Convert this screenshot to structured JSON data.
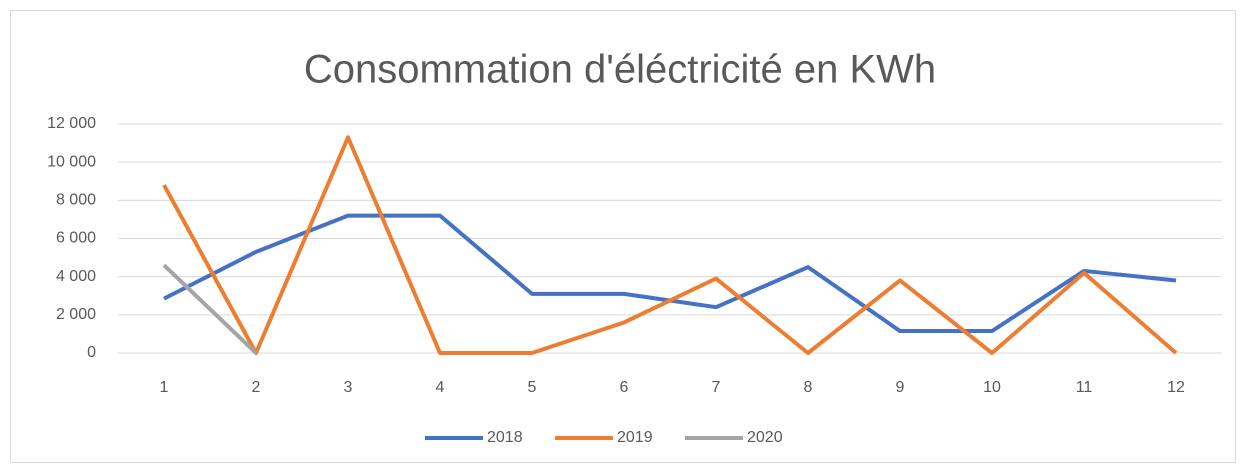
{
  "chart_data": {
    "type": "line",
    "title": "Consommation d'éléctricité en KWh",
    "categories": [
      "1",
      "2",
      "3",
      "4",
      "5",
      "6",
      "7",
      "8",
      "9",
      "10",
      "11",
      "12"
    ],
    "series": [
      {
        "name": "2018",
        "color": "#4472c4",
        "values": [
          2850,
          5300,
          7200,
          7200,
          3100,
          3100,
          2400,
          4500,
          1150,
          1150,
          4300,
          3800
        ]
      },
      {
        "name": "2019",
        "color": "#ed7d31",
        "values": [
          8800,
          0,
          11300,
          0,
          0,
          1600,
          3900,
          0,
          3800,
          0,
          4200,
          0
        ]
      },
      {
        "name": "2020",
        "color": "#a5a5a5",
        "values": [
          4600,
          0,
          null,
          null,
          null,
          null,
          null,
          null,
          null,
          null,
          null,
          null
        ]
      }
    ],
    "ylim": [
      0,
      12000
    ],
    "yticks": [
      0,
      {
        "value": 2000,
        "label": "2 000"
      },
      {
        "value": 4000,
        "label": "4 000"
      },
      {
        "value": 6000,
        "label": "6 000"
      },
      {
        "value": 8000,
        "label": "8 000"
      },
      {
        "value": 10000,
        "label": "10 000"
      },
      {
        "value": 12000,
        "label": "12 000"
      }
    ],
    "grid": true,
    "legend": "bottom"
  }
}
